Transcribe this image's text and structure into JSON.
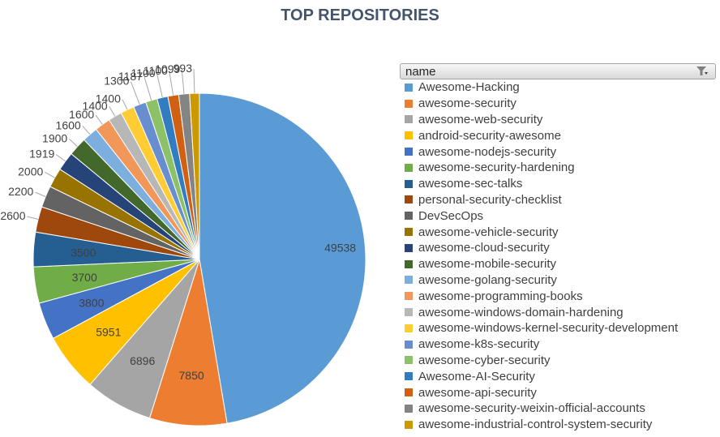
{
  "title": "TOP REPOSITORIES",
  "legend": {
    "header": "name",
    "filter_icon": "filter-icon"
  },
  "chart_data": {
    "type": "pie",
    "title": "TOP REPOSITORIES",
    "legend_placement": "right",
    "slices": [
      {
        "label": "Awesome-Hacking",
        "value": 49538,
        "color": "#5b9bd5"
      },
      {
        "label": "awesome-security",
        "value": 7850,
        "color": "#ed7d31"
      },
      {
        "label": "awesome-web-security",
        "value": 6896,
        "color": "#a5a5a5"
      },
      {
        "label": "android-security-awesome",
        "value": 5951,
        "color": "#ffc000"
      },
      {
        "label": "awesome-nodejs-security",
        "value": 3800,
        "color": "#4472c4"
      },
      {
        "label": "awesome-security-hardening",
        "value": 3700,
        "color": "#70ad47"
      },
      {
        "label": "awesome-sec-talks",
        "value": 3500,
        "color": "#255e91"
      },
      {
        "label": "personal-security-checklist",
        "value": 2600,
        "color": "#9e480e"
      },
      {
        "label": "DevSecOps",
        "value": 2200,
        "color": "#636363"
      },
      {
        "label": "awesome-vehicle-security",
        "value": 2000,
        "color": "#997300"
      },
      {
        "label": "awesome-cloud-security",
        "value": 1919,
        "color": "#264478"
      },
      {
        "label": "awesome-mobile-security",
        "value": 1900,
        "color": "#43682b"
      },
      {
        "label": "awesome-golang-security",
        "value": 1600,
        "color": "#7cafdd"
      },
      {
        "label": "awesome-programming-books",
        "value": 1600,
        "color": "#f1975a"
      },
      {
        "label": "awesome-windows-domain-hardening",
        "value": 1400,
        "color": "#b7b7b7"
      },
      {
        "label": "awesome-windows-kernel-security-development",
        "value": 1400,
        "color": "#ffcd33"
      },
      {
        "label": "awesome-k8s-security",
        "value": 1300,
        "color": "#698ed0"
      },
      {
        "label": "awesome-cyber-security",
        "value": 1187,
        "color": "#8cc168"
      },
      {
        "label": "Awesome-AI-Security",
        "value": 1100,
        "color": "#327dc2"
      },
      {
        "label": "awesome-api-security",
        "value": 1100,
        "color": "#d26012"
      },
      {
        "label": "awesome-security-weixin-official-accounts",
        "value": 1099,
        "color": "#848484"
      },
      {
        "label": "awesome-industrial-control-system-security",
        "value": 993,
        "color": "#cc9a00"
      }
    ]
  }
}
